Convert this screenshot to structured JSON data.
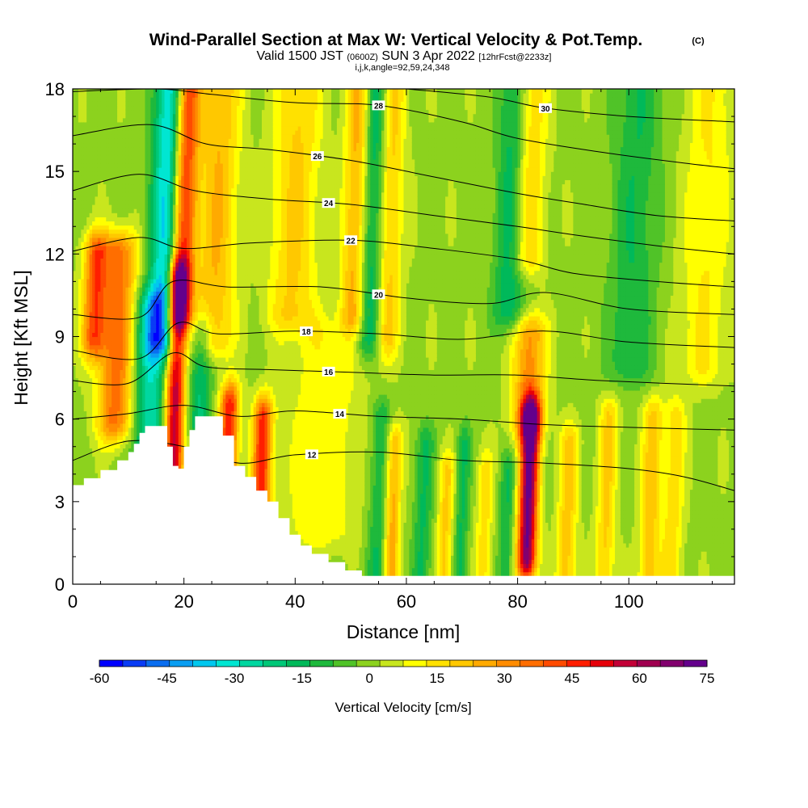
{
  "header": {
    "title": "Wind-Parallel Section at Max W: Vertical Velocity & Pot.Temp.",
    "copyright": "(C)",
    "valid_prefix": "Valid 1500 JST",
    "valid_zulu": "(0600Z)",
    "valid_date": "SUN 3 Apr 2022",
    "forecast": "[12hrFcst@2233z]",
    "params": "i,j,k,angle=92,59,24,348"
  },
  "chart_data": {
    "type": "heatmap",
    "xlabel": "Distance [nm]",
    "ylabel": "Height [Kft MSL]",
    "xlim": [
      0,
      119
    ],
    "ylim": [
      0,
      18
    ],
    "xticks": [
      0,
      20,
      40,
      60,
      80,
      100
    ],
    "yticks": [
      0,
      3,
      6,
      9,
      12,
      15,
      18
    ],
    "terrain_kft": [
      [
        0,
        3.6
      ],
      [
        2,
        3.85
      ],
      [
        5,
        4.15
      ],
      [
        8,
        4.5
      ],
      [
        10,
        4.8
      ],
      [
        11,
        5.1
      ],
      [
        12,
        5.5
      ],
      [
        13,
        5.75
      ],
      [
        16,
        5.75
      ],
      [
        17,
        5.0
      ],
      [
        18,
        4.3
      ],
      [
        19,
        4.2
      ],
      [
        20,
        5.0
      ],
      [
        21,
        5.6
      ],
      [
        22,
        6.1
      ],
      [
        25,
        6.1
      ],
      [
        27,
        5.4
      ],
      [
        29,
        4.3
      ],
      [
        31,
        3.9
      ],
      [
        33,
        3.4
      ],
      [
        35,
        3.0
      ],
      [
        37,
        2.4
      ],
      [
        39,
        1.8
      ],
      [
        41,
        1.4
      ],
      [
        43,
        1.1
      ],
      [
        46,
        0.8
      ],
      [
        49,
        0.5
      ],
      [
        52,
        0.3
      ],
      [
        119,
        0.3
      ]
    ],
    "colorbar": {
      "title": "Vertical Velocity [cm/s]",
      "ticks": [
        -60,
        -45,
        -30,
        -15,
        0,
        15,
        30,
        45,
        60,
        75
      ],
      "min": -60,
      "max": 75,
      "colors": [
        "#0000ff",
        "#0a3cf5",
        "#0a6ef0",
        "#0a9ef2",
        "#00c8ef",
        "#00e6d2",
        "#00d7a0",
        "#00c878",
        "#00b95a",
        "#1eb93c",
        "#50c328",
        "#8cd21e",
        "#c8e61e",
        "#ffff00",
        "#ffe100",
        "#ffc800",
        "#ffaa00",
        "#ff8c00",
        "#ff6e00",
        "#ff4b00",
        "#ff1e00",
        "#e6000a",
        "#c30037",
        "#a00050",
        "#82006e",
        "#64008c"
      ]
    },
    "w_features": [
      {
        "x": 8,
        "zmin": 6,
        "zmax": 12,
        "w": 35,
        "sx": 2.2
      },
      {
        "x": 4,
        "zmin": 9,
        "zmax": 12,
        "w": 38,
        "sx": 1.5
      },
      {
        "x": 17,
        "zmin": 9,
        "zmax": 18,
        "w": -40,
        "sx": 2.0
      },
      {
        "x": 14,
        "zmin": 5,
        "zmax": 10,
        "w": -30,
        "sx": 2.0
      },
      {
        "x": 20,
        "zmin": 10,
        "zmax": 18,
        "w": 50,
        "sx": 1.6
      },
      {
        "x": 18.5,
        "zmin": 4,
        "zmax": 11,
        "w": 58,
        "sx": 1.2
      },
      {
        "x": 23,
        "zmin": 6,
        "zmax": 9,
        "w": -20,
        "sx": 1.4
      },
      {
        "x": 28,
        "zmin": 3.5,
        "zmax": 6.5,
        "w": 48,
        "sx": 1.2
      },
      {
        "x": 34,
        "zmin": 3,
        "zmax": 6,
        "w": 45,
        "sx": 1.2
      },
      {
        "x": 26,
        "zmin": 9,
        "zmax": 18,
        "w": 22,
        "sx": 2.5
      },
      {
        "x": 40,
        "zmin": 10,
        "zmax": 18,
        "w": 18,
        "sx": 3
      },
      {
        "x": 54,
        "zmin": 9,
        "zmax": 18,
        "w": -22,
        "sx": 1.6
      },
      {
        "x": 51,
        "zmin": 10,
        "zmax": 18,
        "w": 25,
        "sx": 1.6
      },
      {
        "x": 57,
        "zmin": 9,
        "zmax": 18,
        "w": 20,
        "sx": 1.6
      },
      {
        "x": 55,
        "zmin": 0.3,
        "zmax": 6,
        "w": -15,
        "sx": 1.3
      },
      {
        "x": 57.5,
        "zmin": 0.3,
        "zmax": 5,
        "w": 25,
        "sx": 1
      },
      {
        "x": 63,
        "zmin": 0.3,
        "zmax": 5,
        "w": -15,
        "sx": 1.2
      },
      {
        "x": 67,
        "zmin": 0.3,
        "zmax": 4,
        "w": 18,
        "sx": 1
      },
      {
        "x": 70,
        "zmin": 0.3,
        "zmax": 5,
        "w": -15,
        "sx": 0.9
      },
      {
        "x": 74,
        "zmin": 0.3,
        "zmax": 4,
        "w": 15,
        "sx": 1
      },
      {
        "x": 78,
        "zmin": 0.3,
        "zmax": 4,
        "w": -14,
        "sx": 1
      },
      {
        "x": 82,
        "zmin": 1,
        "zmax": 6,
        "w": 70,
        "sx": 1.2
      },
      {
        "x": 82,
        "zmin": 6,
        "zmax": 9,
        "w": 30,
        "sx": 2
      },
      {
        "x": 79,
        "zmin": 10,
        "zmax": 18,
        "w": -20,
        "sx": 2
      },
      {
        "x": 82,
        "zmin": 12,
        "zmax": 18,
        "w": 20,
        "sx": 2
      },
      {
        "x": 89,
        "zmin": 0.3,
        "zmax": 5,
        "w": 20,
        "sx": 1.2
      },
      {
        "x": 96,
        "zmin": 0.3,
        "zmax": 6,
        "w": 18,
        "sx": 1.2
      },
      {
        "x": 104,
        "zmin": 0.3,
        "zmax": 6,
        "w": 20,
        "sx": 1.3
      },
      {
        "x": 108,
        "zmin": 0.3,
        "zmax": 6,
        "w": 15,
        "sx": 1.3
      },
      {
        "x": 101,
        "zmin": 8,
        "zmax": 18,
        "w": -14,
        "sx": 3
      },
      {
        "x": 114,
        "zmin": 8,
        "zmax": 18,
        "w": 12,
        "sx": 3
      },
      {
        "x": 45,
        "zmin": 2,
        "zmax": 9,
        "w": 10,
        "sx": 5
      }
    ],
    "theta_contours": [
      {
        "value": 12,
        "label_x": 43,
        "pts": [
          [
            0,
            4.5
          ],
          [
            10,
            5.2
          ],
          [
            20,
            5.0
          ],
          [
            30,
            4.4
          ],
          [
            40,
            4.7
          ],
          [
            55,
            4.8
          ],
          [
            70,
            4.5
          ],
          [
            85,
            4.4
          ],
          [
            100,
            4.2
          ],
          [
            110,
            3.9
          ],
          [
            119,
            3.4
          ]
        ]
      },
      {
        "value": 14,
        "label_x": 48,
        "pts": [
          [
            0,
            6.0
          ],
          [
            10,
            6.2
          ],
          [
            20,
            6.5
          ],
          [
            30,
            6.1
          ],
          [
            40,
            6.3
          ],
          [
            55,
            6.1
          ],
          [
            70,
            6.0
          ],
          [
            85,
            5.8
          ],
          [
            100,
            5.7
          ],
          [
            119,
            5.6
          ]
        ]
      },
      {
        "value": 16,
        "label_x": 46,
        "pts": [
          [
            0,
            7.4
          ],
          [
            10,
            7.3
          ],
          [
            18,
            8.4
          ],
          [
            24,
            7.9
          ],
          [
            35,
            7.8
          ],
          [
            50,
            7.7
          ],
          [
            65,
            7.6
          ],
          [
            80,
            7.6
          ],
          [
            95,
            7.4
          ],
          [
            119,
            7.2
          ]
        ]
      },
      {
        "value": 18,
        "label_x": 42,
        "pts": [
          [
            0,
            8.5
          ],
          [
            12,
            8.2
          ],
          [
            19,
            9.5
          ],
          [
            26,
            9.1
          ],
          [
            40,
            9.2
          ],
          [
            55,
            9.1
          ],
          [
            70,
            8.9
          ],
          [
            85,
            9.2
          ],
          [
            100,
            8.8
          ],
          [
            119,
            8.6
          ]
        ]
      },
      {
        "value": 20,
        "label_x": 55,
        "pts": [
          [
            0,
            9.8
          ],
          [
            12,
            9.7
          ],
          [
            18,
            11.0
          ],
          [
            28,
            10.8
          ],
          [
            45,
            10.8
          ],
          [
            60,
            10.4
          ],
          [
            75,
            10.2
          ],
          [
            85,
            10.6
          ],
          [
            100,
            10.0
          ],
          [
            119,
            9.8
          ]
        ]
      },
      {
        "value": 22,
        "label_x": 50,
        "pts": [
          [
            0,
            12.1
          ],
          [
            12,
            12.6
          ],
          [
            20,
            12.2
          ],
          [
            32,
            12.4
          ],
          [
            50,
            12.5
          ],
          [
            65,
            12.2
          ],
          [
            80,
            11.8
          ],
          [
            90,
            11.3
          ],
          [
            105,
            11.0
          ],
          [
            119,
            10.8
          ]
        ]
      },
      {
        "value": 24,
        "label_x": 46,
        "pts": [
          [
            0,
            14.3
          ],
          [
            12,
            14.9
          ],
          [
            22,
            14.3
          ],
          [
            35,
            14.0
          ],
          [
            50,
            13.8
          ],
          [
            65,
            13.4
          ],
          [
            80,
            13.0
          ],
          [
            90,
            12.7
          ],
          [
            105,
            12.3
          ],
          [
            119,
            12.0
          ]
        ]
      },
      {
        "value": 26,
        "label_x": 44,
        "pts": [
          [
            0,
            16.3
          ],
          [
            14,
            16.7
          ],
          [
            24,
            16.0
          ],
          [
            35,
            15.8
          ],
          [
            50,
            15.4
          ],
          [
            65,
            14.8
          ],
          [
            80,
            14.2
          ],
          [
            92,
            13.8
          ],
          [
            105,
            13.4
          ],
          [
            119,
            13.2
          ]
        ]
      },
      {
        "value": 28,
        "label_x": 55,
        "pts": [
          [
            0,
            17.9
          ],
          [
            15,
            18.0
          ],
          [
            25,
            17.8
          ],
          [
            40,
            17.5
          ],
          [
            55,
            17.4
          ],
          [
            70,
            16.8
          ],
          [
            80,
            16.2
          ],
          [
            95,
            15.7
          ],
          [
            110,
            15.3
          ],
          [
            119,
            15.1
          ]
        ]
      },
      {
        "value": 30,
        "label_x": 85,
        "pts": [
          [
            60,
            18.0
          ],
          [
            75,
            17.7
          ],
          [
            85,
            17.3
          ],
          [
            100,
            17.0
          ],
          [
            119,
            16.8
          ]
        ]
      }
    ]
  }
}
